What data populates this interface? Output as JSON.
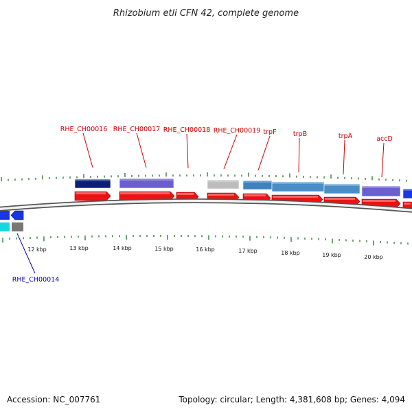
{
  "title": "Rhizobium etli CFN 42, complete genome",
  "footer": {
    "accession": "Accession: NC_007761",
    "summary": "Topology: circular; Length: 4,381,608 bp; Genes: 4,094"
  },
  "colors": {
    "cds_forward": "#ee1111",
    "tick_mark": "#2e7d32",
    "label_forward": "#cc0000",
    "label_reverse": "#0000aa",
    "backbone": "#888888"
  },
  "axis_labels": [
    "12 kbp",
    "13 kbp",
    "14 kbp",
    "15 kbp",
    "16 kbp",
    "17 kbp",
    "18 kbp",
    "19 kbp",
    "20 kbp"
  ],
  "gene_labels_forward": [
    "RHE_CH00016",
    "RHE_CH00017",
    "RHE_CH00018",
    "RHE_CH00019",
    "trpF",
    "trpB",
    "trpA",
    "accD"
  ],
  "gene_labels_reverse": [
    "RHE_CH00014"
  ]
}
